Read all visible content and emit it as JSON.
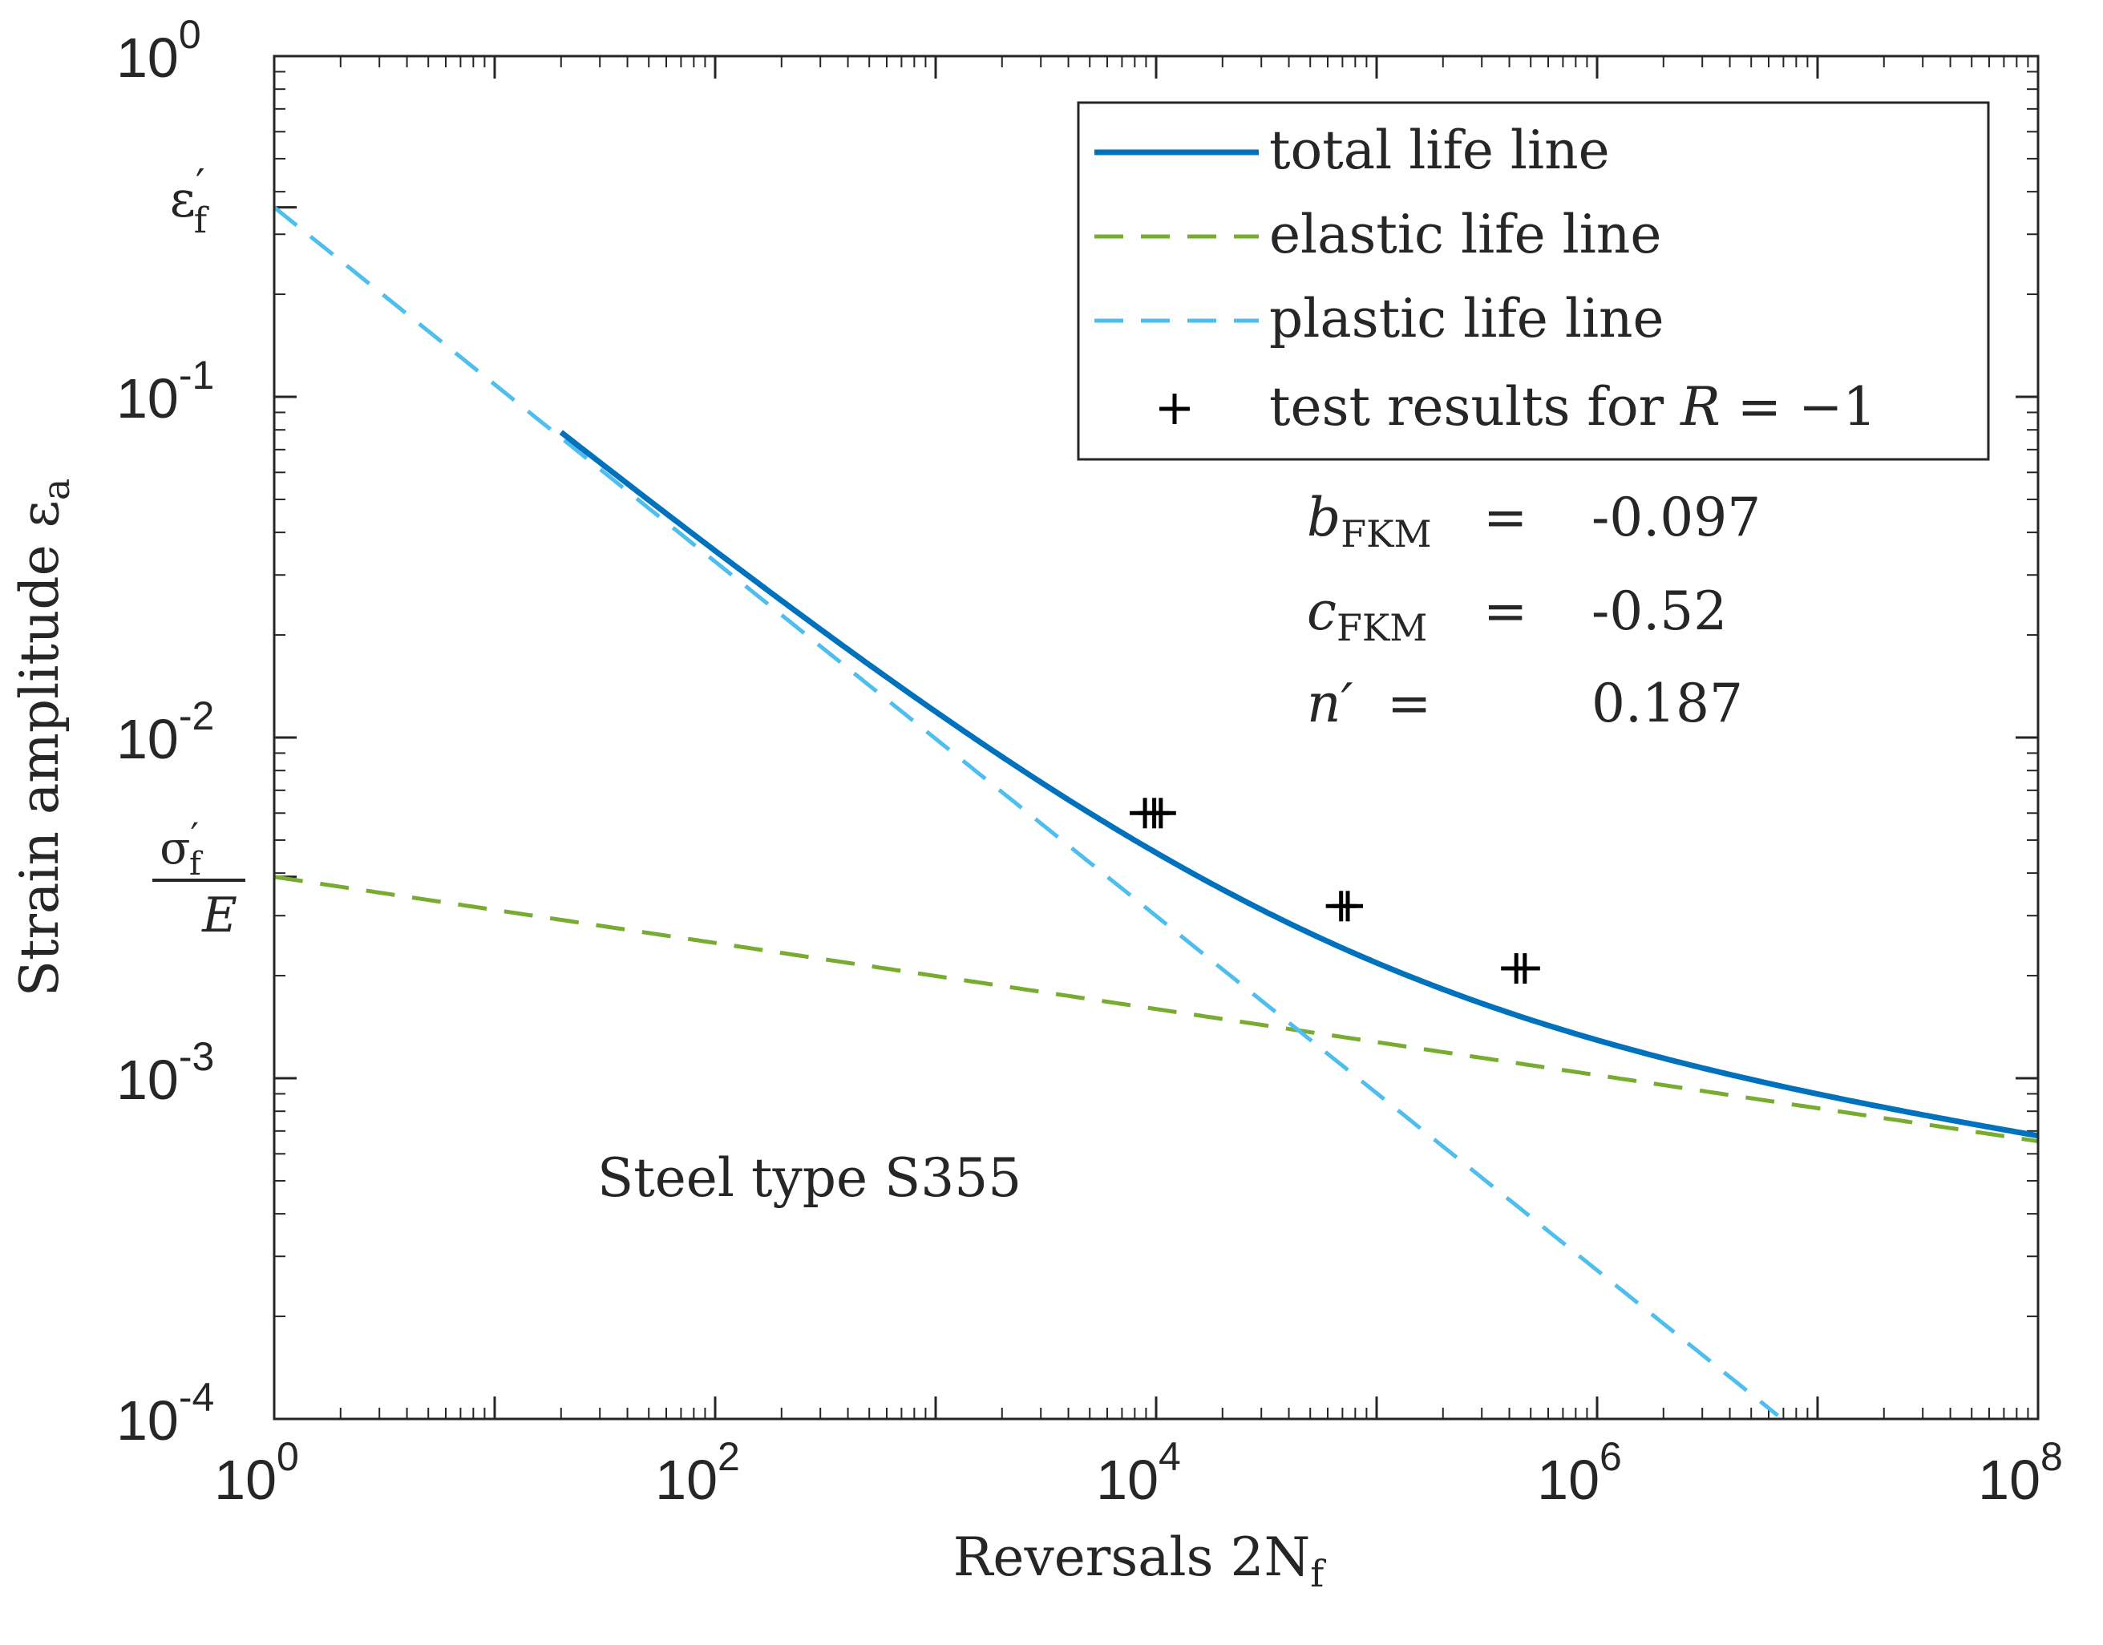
{
  "chart_data": {
    "type": "line",
    "scale": "loglog",
    "title": "",
    "xlabel": "Reversals 2N",
    "xlabel_sub": "f",
    "ylabel": "Strain amplitude ε",
    "ylabel_sub": "a",
    "xlim": [
      1,
      100000000
    ],
    "ylim": [
      0.0001,
      1
    ],
    "x_ticks": [
      {
        "base": "10",
        "exp": "0"
      },
      {
        "base": "10",
        "exp": "2"
      },
      {
        "base": "10",
        "exp": "4"
      },
      {
        "base": "10",
        "exp": "6"
      },
      {
        "base": "10",
        "exp": "8"
      }
    ],
    "y_ticks": [
      {
        "base": "10",
        "exp": "0"
      },
      {
        "base": "10",
        "exp": "-1"
      },
      {
        "base": "10",
        "exp": "-2"
      },
      {
        "base": "10",
        "exp": "-3"
      },
      {
        "base": "10",
        "exp": "-4"
      }
    ],
    "y_special_ticks": {
      "eps_f_symbol": "ε",
      "eps_f_sub": "f",
      "eps_f_prime": "′",
      "eps_f_value": 0.36,
      "sigma_symbol": "σ",
      "sigma_sub": "f",
      "sigma_prime": "′",
      "sigma_denominator": "E",
      "sigma_E_value": 0.0039
    },
    "series": [
      {
        "name": "total life line",
        "color": "#0072BD",
        "style": "solid",
        "x_range": [
          20,
          100000000
        ]
      },
      {
        "name": "elastic life line",
        "color": "#77AC30",
        "style": "dashed",
        "coef": 0.0039,
        "exponent": -0.097
      },
      {
        "name": "plastic life line",
        "color": "#4DBEEE",
        "style": "dashed",
        "coef": 0.36,
        "exponent": -0.52
      }
    ],
    "test_results": {
      "name": "test results for R = −1",
      "legend_text": "test results for ",
      "legend_var": "R",
      "legend_eq": " = −1",
      "marker": "+",
      "points": [
        {
          "x": 8900,
          "y": 0.006
        },
        {
          "x": 9800,
          "y": 0.006
        },
        {
          "x": 10500,
          "y": 0.006
        },
        {
          "x": 69000,
          "y": 0.0032
        },
        {
          "x": 74000,
          "y": 0.0032
        },
        {
          "x": 430000,
          "y": 0.0021
        },
        {
          "x": 470000,
          "y": 0.0021
        }
      ]
    },
    "parameters": [
      {
        "symbol": "b",
        "sub": "FKM",
        "eq": "=",
        "value": "-0.097"
      },
      {
        "symbol": "c",
        "sub": "FKM",
        "eq": "=",
        "value": "-0.52"
      },
      {
        "symbol": "n′",
        "sub": "",
        "eq": "=",
        "value": "0.187"
      }
    ],
    "annotation": "Steel type S355",
    "legend_position": "top-right",
    "grid": false
  }
}
